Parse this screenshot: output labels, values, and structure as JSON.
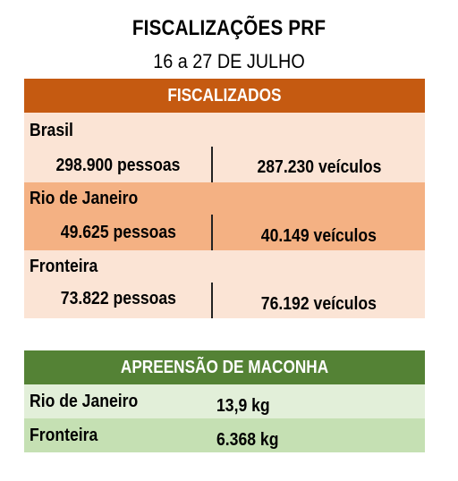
{
  "header": {
    "title": "FISCALIZAÇÕES PRF",
    "subtitle": "16 a 27 DE JULHO"
  },
  "fiscalizados": {
    "heading": "FISCALIZADOS",
    "regions": [
      {
        "name": "Brasil",
        "pessoas": "298.900 pessoas",
        "veiculos": "287.230 veículos"
      },
      {
        "name": "Rio de Janeiro",
        "pessoas": "49.625 pessoas",
        "veiculos": "40.149 veículos"
      },
      {
        "name": "Fronteira",
        "pessoas": "73.822 pessoas",
        "veiculos": "76.192 veículos"
      }
    ]
  },
  "apreensao": {
    "heading": "APREENSÃO DE MACONHA",
    "rows": [
      {
        "name": "Rio de Janeiro",
        "value": "13,9 kg"
      },
      {
        "name": "Fronteira",
        "value": "6.368 kg"
      }
    ]
  },
  "colors": {
    "orange_header": "#c55a11",
    "peach_light": "#fbe4d5",
    "peach_mid": "#f4b183",
    "green_header": "#548235",
    "green_light": "#e2efd9",
    "green_mid": "#c5e0b3"
  }
}
